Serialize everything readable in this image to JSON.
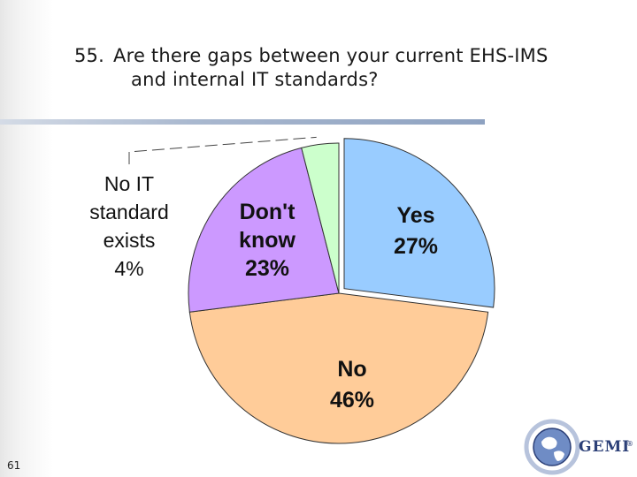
{
  "slide": {
    "title_number": "55.",
    "title_line1": "Are there gaps between your current EHS-IMS",
    "title_line2": "and internal IT standards?",
    "page_number": "61"
  },
  "logo": {
    "text": "GEMI",
    "reg": "®"
  },
  "colors": {
    "yes": "#99ccff",
    "no": "#ffcc99",
    "dont_know": "#cc99ff",
    "no_it_standard": "#ccffcc"
  },
  "chart_data": {
    "type": "pie",
    "slices": [
      {
        "label": "Yes",
        "value": 27,
        "value_label": "27%",
        "color": "#99ccff"
      },
      {
        "label": "No",
        "value": 46,
        "value_label": "46%",
        "color": "#ffcc99"
      },
      {
        "label": "Don't know",
        "value": 23,
        "value_label": "23%",
        "color": "#cc99ff"
      },
      {
        "label": "No IT standard exists",
        "value": 4,
        "value_label": "4%",
        "color": "#ccffcc"
      }
    ],
    "label_lines": {
      "Yes": [
        "Yes",
        "27%"
      ],
      "No": [
        "No",
        "46%"
      ],
      "Don't know": [
        "Don't",
        "know",
        "23%"
      ],
      "No IT standard exists": [
        "No IT",
        "standard",
        "exists",
        "4%"
      ]
    },
    "start_angle_deg": 0,
    "direction": "clockwise",
    "exploded": "Yes"
  }
}
